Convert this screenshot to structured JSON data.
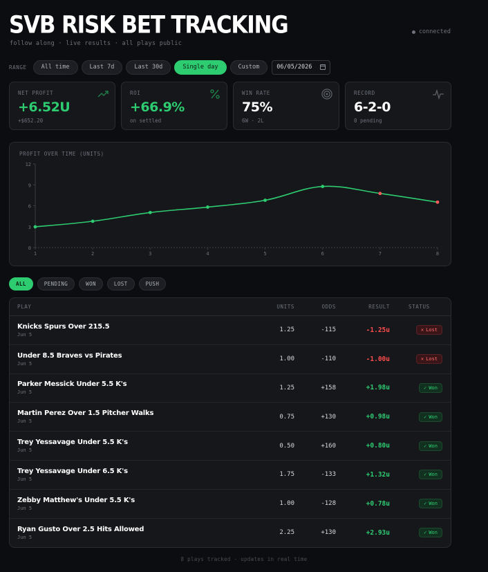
{
  "header": {
    "title": "SVB RISK BET TRACKING",
    "subtitle": "follow along · live results · all plays public",
    "connection": "connected"
  },
  "range": {
    "label": "RANGE",
    "options": [
      "All time",
      "Last 7d",
      "Last 30d",
      "Single day",
      "Custom"
    ],
    "active": "Single day",
    "date": "06/05/2026"
  },
  "cards": [
    {
      "label": "NET PROFIT",
      "value": "+6.52U",
      "sub": "+$652.20",
      "icon": "trend-up-icon"
    },
    {
      "label": "ROI",
      "value": "+66.9%",
      "sub": "on settled",
      "icon": "percent-icon"
    },
    {
      "label": "WIN RATE",
      "value": "75%",
      "sub": "6W · 2L",
      "icon": "target-icon"
    },
    {
      "label": "RECORD",
      "value": "6-2-0",
      "sub": "0 pending",
      "icon": "activity-icon"
    }
  ],
  "chart_data": {
    "type": "line",
    "title": "PROFIT OVER TIME (UNITS)",
    "x": [
      1,
      2,
      3,
      4,
      5,
      6,
      7,
      8
    ],
    "y": [
      2.98,
      3.78,
      5.03,
      5.81,
      6.79,
      8.77,
      7.77,
      6.52
    ],
    "point_results": [
      "won",
      "won",
      "won",
      "won",
      "won",
      "won",
      "lost",
      "lost"
    ],
    "yticks": [
      0,
      3,
      6,
      9,
      12
    ],
    "ylim": [
      0,
      12
    ],
    "xlim": [
      1,
      8
    ],
    "grid": false,
    "legend": "none"
  },
  "filters": {
    "options": [
      "ALL",
      "PENDING",
      "WON",
      "LOST",
      "PUSH"
    ],
    "active": "ALL"
  },
  "table": {
    "headers": {
      "play": "PLAY",
      "units": "UNITS",
      "odds": "ODDS",
      "result": "RESULT",
      "status": "STATUS"
    },
    "rows": [
      {
        "play": "Knicks Spurs Over 215.5",
        "date": "Jun 5",
        "units": "1.25",
        "odds": "-115",
        "result": "-1.25u",
        "status": "Lost"
      },
      {
        "play": "Under 8.5 Braves vs Pirates",
        "date": "Jun 5",
        "units": "1.00",
        "odds": "-110",
        "result": "-1.00u",
        "status": "Lost"
      },
      {
        "play": "Parker Messick Under 5.5 K's",
        "date": "Jun 5",
        "units": "1.25",
        "odds": "+158",
        "result": "+1.98u",
        "status": "Won"
      },
      {
        "play": "Martin Perez Over 1.5 Pitcher Walks",
        "date": "Jun 5",
        "units": "0.75",
        "odds": "+130",
        "result": "+0.98u",
        "status": "Won"
      },
      {
        "play": "Trey Yessavage Under 5.5 K's",
        "date": "Jun 5",
        "units": "0.50",
        "odds": "+160",
        "result": "+0.80u",
        "status": "Won"
      },
      {
        "play": "Trey Yessavage Under 6.5 K's",
        "date": "Jun 5",
        "units": "1.75",
        "odds": "-133",
        "result": "+1.32u",
        "status": "Won"
      },
      {
        "play": "Zebby Matthew's Under 5.5 K's",
        "date": "Jun 5",
        "units": "1.00",
        "odds": "-128",
        "result": "+0.78u",
        "status": "Won"
      },
      {
        "play": "Ryan Gusto Over 2.5 Hits Allowed",
        "date": "Jun 5",
        "units": "2.25",
        "odds": "+130",
        "result": "+2.93u",
        "status": "Won"
      }
    ]
  },
  "footer": "8 plays tracked · updates in real time",
  "colors": {
    "accent": "#2ecc71",
    "loss": "#ff4d4d",
    "background": "#0c0d10",
    "card": "#16171b"
  }
}
